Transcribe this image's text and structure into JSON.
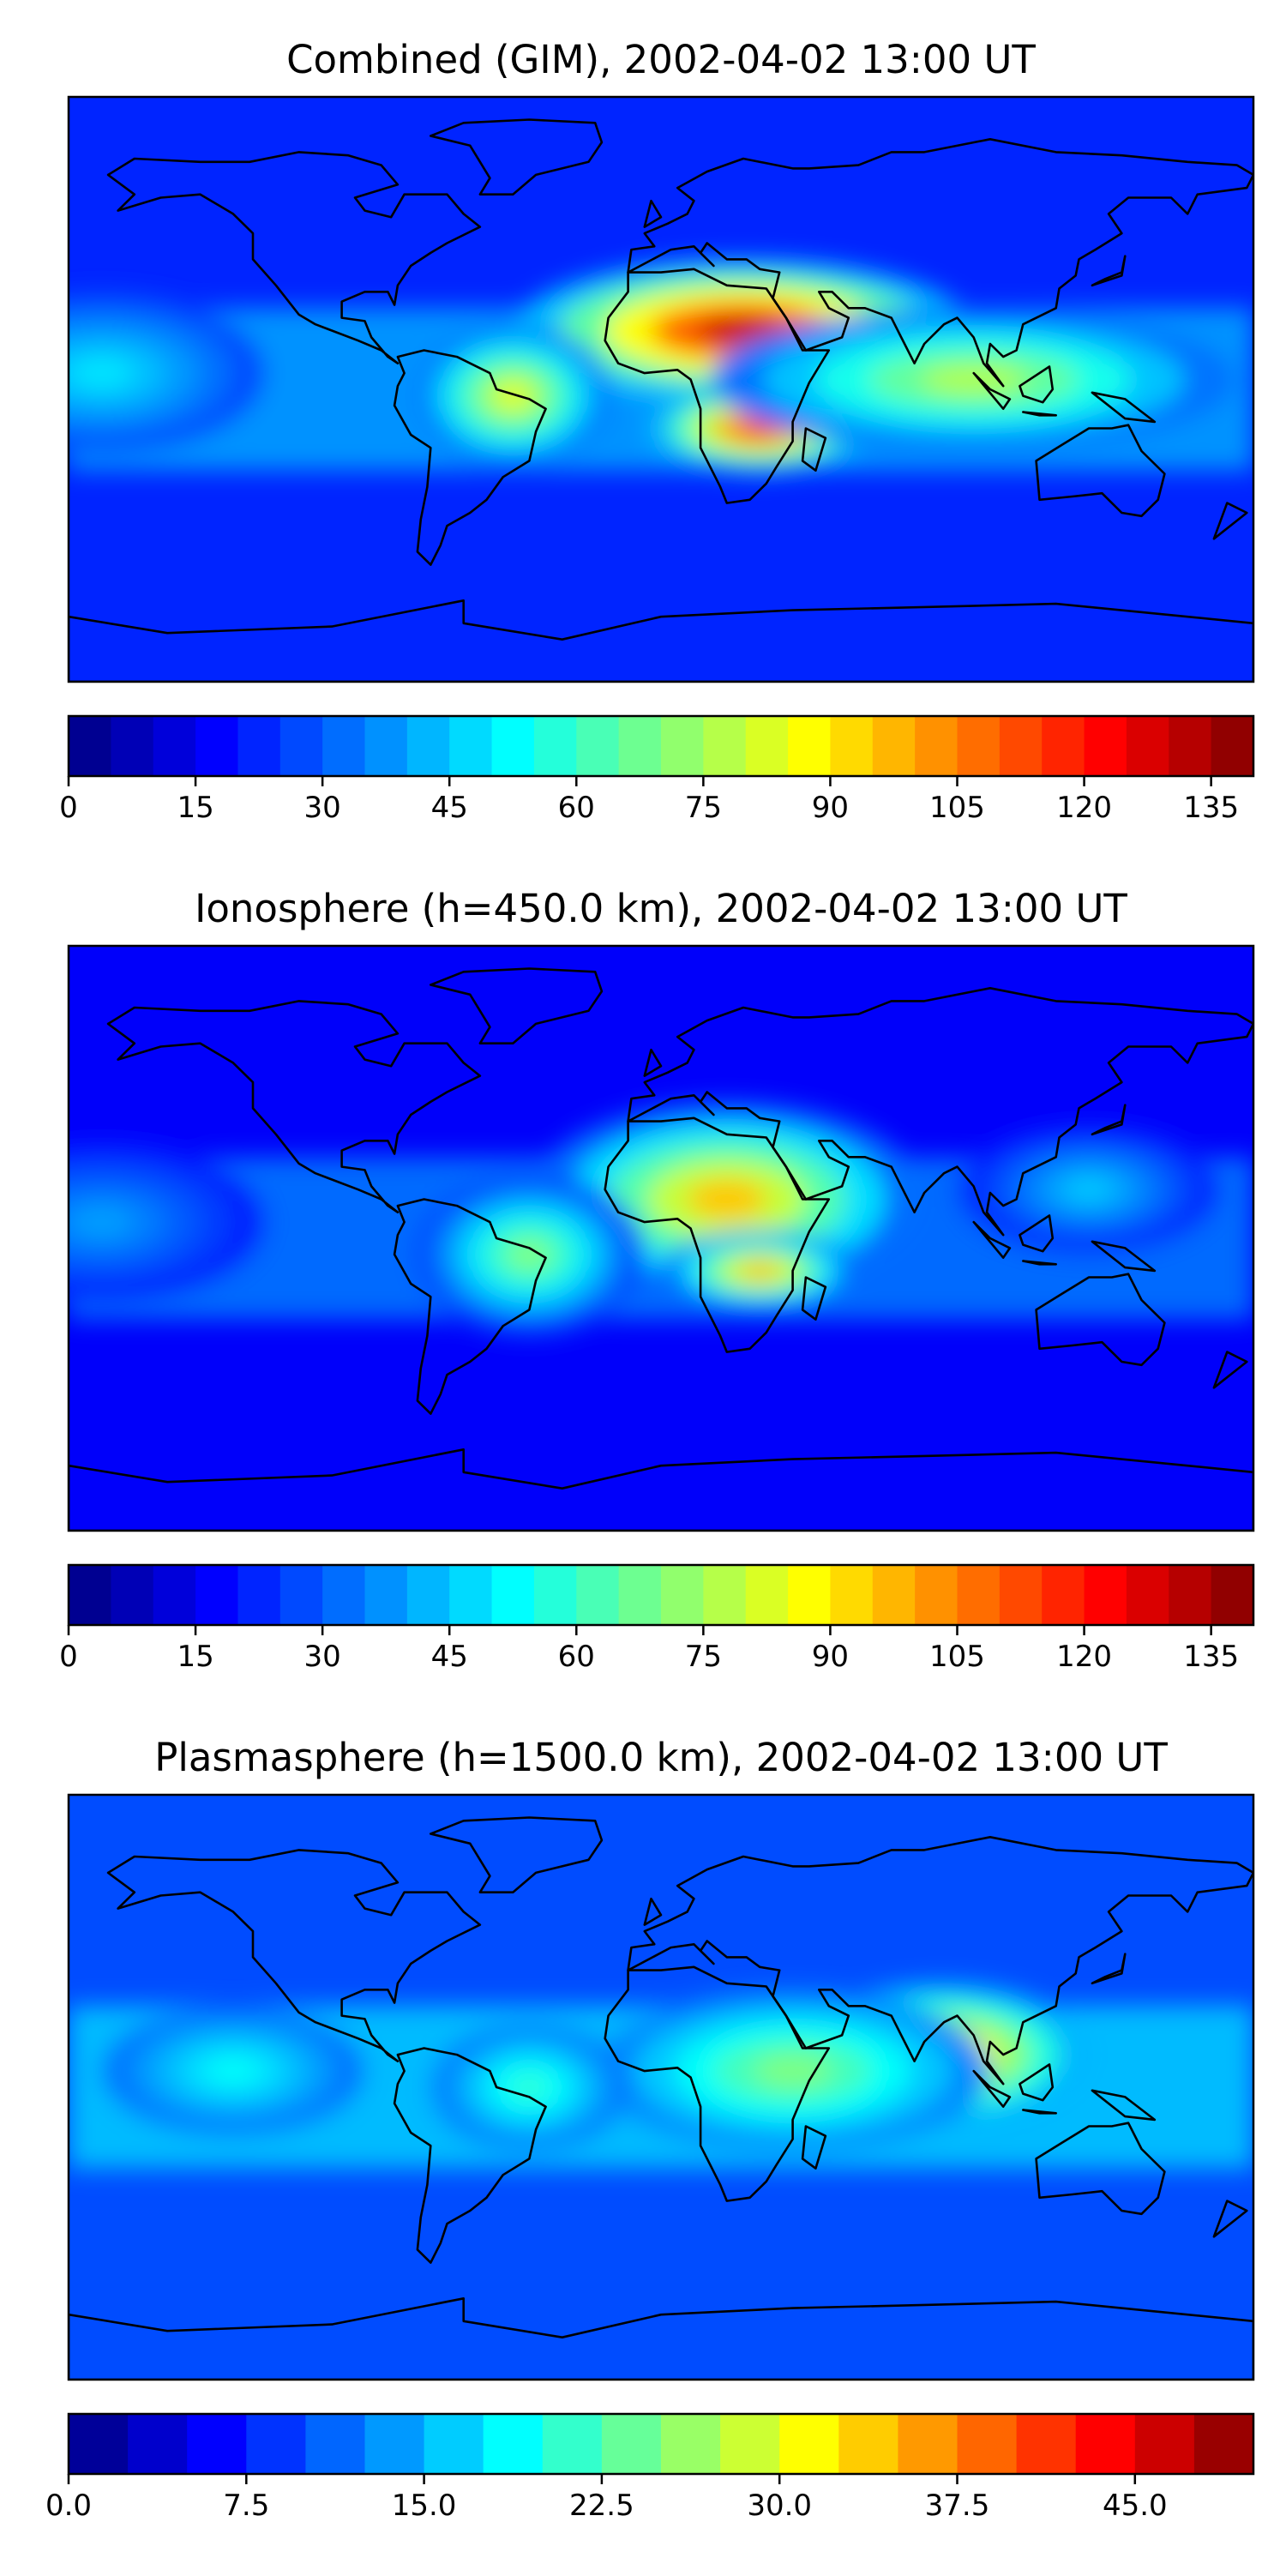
{
  "panels": [
    {
      "title": "Combined (GIM), 2002-04-02 13:00 UT",
      "colorbar": {
        "min": 0,
        "max": 140,
        "levels": 28,
        "tick_values": [
          0,
          15,
          30,
          45,
          60,
          75,
          90,
          105,
          120,
          135
        ],
        "tick_labels": [
          "0",
          "15",
          "30",
          "45",
          "60",
          "75",
          "90",
          "105",
          "120",
          "135"
        ]
      },
      "hotspots": [
        {
          "lon": 25,
          "lat": 18,
          "rx": 70,
          "ry": 22,
          "level": 0.93
        },
        {
          "lon": 30,
          "lat": -12,
          "rx": 35,
          "ry": 14,
          "level": 0.85
        },
        {
          "lon": -45,
          "lat": -2,
          "rx": 30,
          "ry": 22,
          "level": 0.6
        },
        {
          "lon": 95,
          "lat": 3,
          "rx": 80,
          "ry": 22,
          "level": 0.55
        },
        {
          "lon": -170,
          "lat": 5,
          "rx": 50,
          "ry": 25,
          "level": 0.35
        }
      ],
      "base_level": 0.16
    },
    {
      "title": "Ionosphere  (h=450.0 km), 2002-04-02 13:00 UT",
      "colorbar": {
        "min": 0,
        "max": 140,
        "levels": 28,
        "tick_values": [
          0,
          15,
          30,
          45,
          60,
          75,
          90,
          105,
          120,
          135
        ],
        "tick_labels": [
          "0",
          "15",
          "30",
          "45",
          "60",
          "75",
          "90",
          "105",
          "120",
          "135"
        ]
      },
      "hotspots": [
        {
          "lon": 20,
          "lat": 12,
          "rx": 60,
          "ry": 30,
          "level": 0.68
        },
        {
          "lon": 30,
          "lat": -10,
          "rx": 30,
          "ry": 12,
          "level": 0.7
        },
        {
          "lon": -40,
          "lat": -5,
          "rx": 35,
          "ry": 25,
          "level": 0.5
        },
        {
          "lon": 130,
          "lat": 15,
          "rx": 40,
          "ry": 20,
          "level": 0.32
        },
        {
          "lon": -170,
          "lat": 5,
          "rx": 50,
          "ry": 25,
          "level": 0.28
        }
      ],
      "base_level": 0.12
    },
    {
      "title": "Plasmasphere (h=1500.0 km), 2002-04-02 13:00 UT",
      "colorbar": {
        "min": 0,
        "max": 50,
        "levels": 20,
        "tick_values": [
          0,
          7.5,
          15,
          22.5,
          30,
          37.5,
          45
        ],
        "tick_labels": [
          "0.0",
          "7.5",
          "15.0",
          "22.5",
          "30.0",
          "37.5",
          "45.0"
        ]
      },
      "hotspots": [
        {
          "lon": 85,
          "lat": 10,
          "rx": 45,
          "ry": 22,
          "level": 0.72
        },
        {
          "lon": 40,
          "lat": 5,
          "rx": 60,
          "ry": 25,
          "level": 0.5
        },
        {
          "lon": -130,
          "lat": 5,
          "rx": 40,
          "ry": 20,
          "level": 0.38
        },
        {
          "lon": -40,
          "lat": 0,
          "rx": 30,
          "ry": 20,
          "level": 0.42
        }
      ],
      "base_level": 0.2
    }
  ],
  "colors": {
    "jet": [
      "#00007f",
      "#0000ff",
      "#007fff",
      "#00ffff",
      "#7fff7f",
      "#ffff00",
      "#ff7f00",
      "#ff0000",
      "#7f0000"
    ],
    "coastline": "#000000"
  }
}
